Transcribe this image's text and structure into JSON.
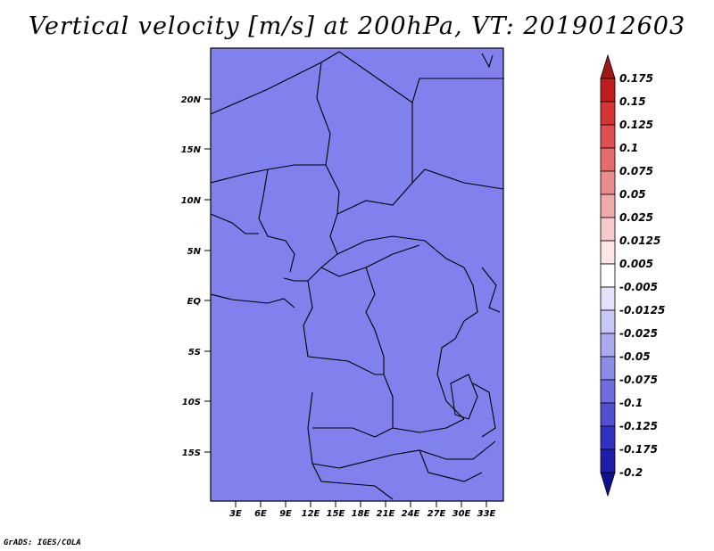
{
  "title": "Vertical velocity [m/s] at 200hPa, VT: 2019012603",
  "credit": "GrADS: IGES/COLA",
  "map": {
    "lat_labels": [
      "20N",
      "15N",
      "10N",
      "5N",
      "EQ",
      "5S",
      "10S",
      "15S"
    ],
    "lon_labels": [
      "3E",
      "6E",
      "9E",
      "12E",
      "15E",
      "18E",
      "21E",
      "24E",
      "27E",
      "30E",
      "33E"
    ]
  },
  "colorbar": {
    "labels": [
      "0.175",
      "0.15",
      "0.125",
      "0.1",
      "0.075",
      "0.05",
      "0.025",
      "0.0125",
      "0.005",
      "-0.005",
      "-0.0125",
      "-0.025",
      "-0.05",
      "-0.075",
      "-0.1",
      "-0.125",
      "-0.175",
      "-0.2"
    ],
    "colors": [
      "#a01818",
      "#c01e1e",
      "#d43434",
      "#e05050",
      "#e46c6c",
      "#ea8c8c",
      "#f0aaaa",
      "#f6caca",
      "#fce6e6",
      "#ffffff",
      "#e2e2fc",
      "#c8c8f6",
      "#aaaaf0",
      "#8c8ce8",
      "#6e6ede",
      "#5050d2",
      "#3232c2",
      "#1e1eaa",
      "#10108c"
    ]
  }
}
